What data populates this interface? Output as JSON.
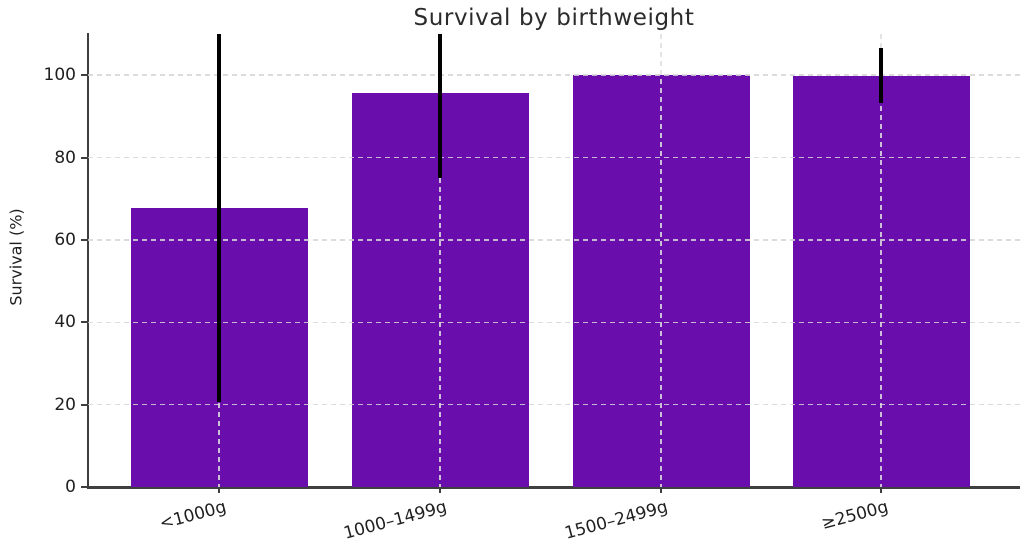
{
  "figure": {
    "background": "#ffffff"
  },
  "chart_data": {
    "type": "bar",
    "title": "Survival by birthweight",
    "xlabel": "",
    "ylabel": "Survival (%)",
    "categories": [
      "<1000g",
      "1000–1499g",
      "1500–2499g",
      "≥2500g"
    ],
    "values": [
      67.7,
      95.6,
      100.0,
      99.7
    ],
    "error_low": [
      20.6,
      75.0,
      null,
      93.2
    ],
    "error_high": [
      110,
      110,
      null,
      106.6
    ],
    "error_clipped_at_top": [
      true,
      true,
      false,
      false
    ],
    "yticks": [
      0,
      20,
      40,
      60,
      80,
      100
    ],
    "ylim": [
      0,
      110
    ],
    "grid": {
      "horizontal": true,
      "vertical": true,
      "style": "dashed",
      "color": "#d6d6d6",
      "drawn_over_bars": true
    },
    "legend": null,
    "bar_color": "#6A0DAD",
    "error_bar_color": "#000000",
    "axis_color": "#3f3f3f",
    "text_color": "#1f1f1f",
    "x_tick_rotation_deg": 15
  }
}
